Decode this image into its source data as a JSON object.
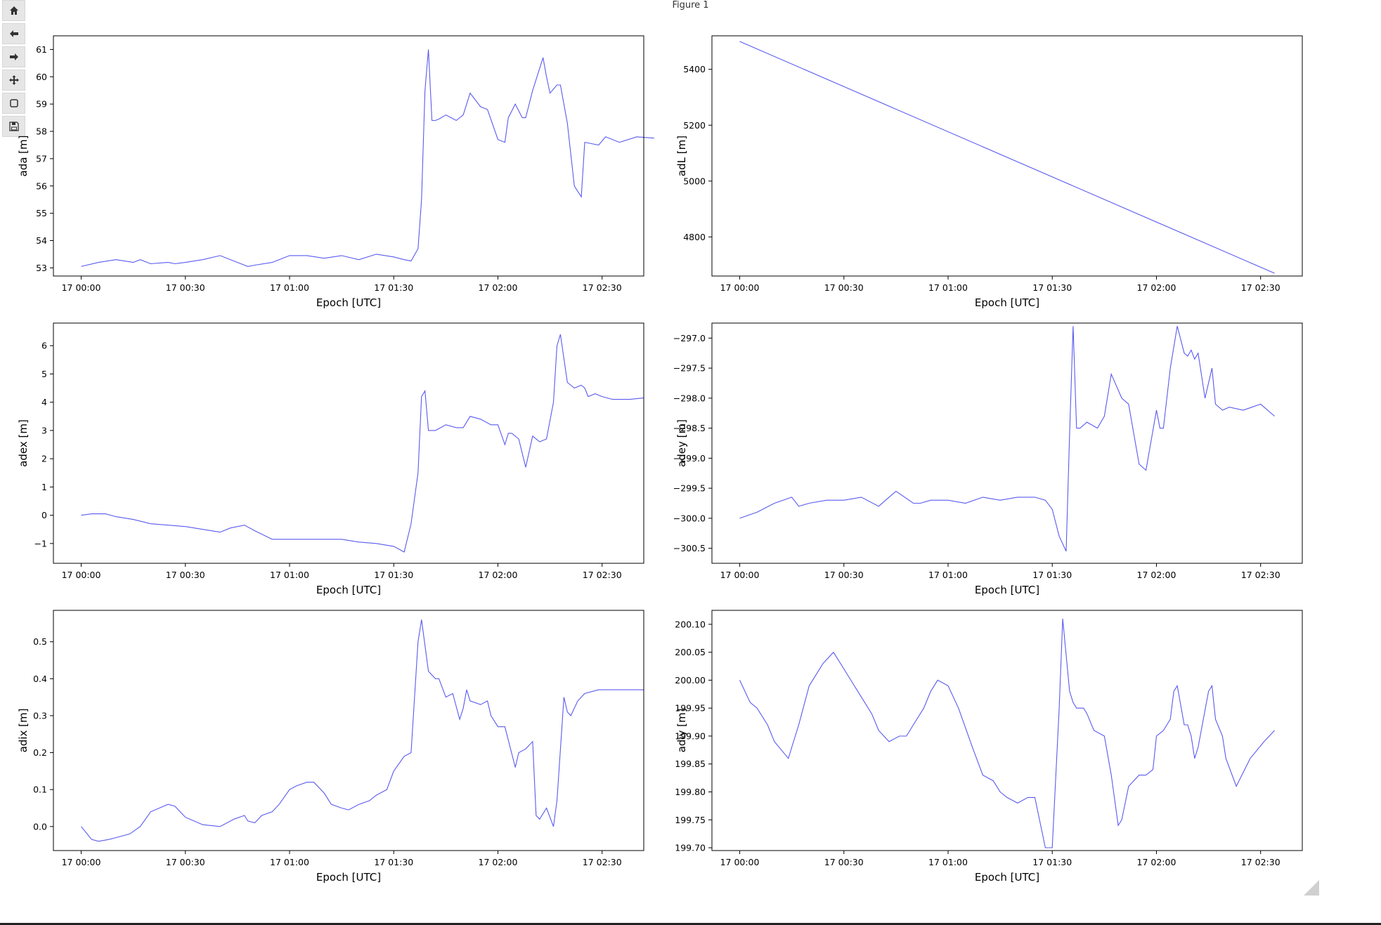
{
  "window": {
    "title": "Figure 1"
  },
  "toolbar": {
    "buttons": [
      {
        "name": "home",
        "icon": "home-icon"
      },
      {
        "name": "back",
        "icon": "arrow-left-icon"
      },
      {
        "name": "forward",
        "icon": "arrow-right-icon"
      },
      {
        "name": "pan",
        "icon": "move-icon"
      },
      {
        "name": "zoom",
        "icon": "zoom-rect-icon"
      },
      {
        "name": "save",
        "icon": "save-icon"
      }
    ]
  },
  "colors": {
    "line": "#5a5af0",
    "axes": "#000000"
  },
  "chart_data": [
    {
      "type": "line",
      "ylabel": "ada [m]",
      "xlabel": "Epoch [UTC]",
      "ylim": [
        52.7,
        61.5
      ],
      "yticks": [
        53,
        54,
        55,
        56,
        57,
        58,
        59,
        60,
        61
      ],
      "ytick_labels": [
        "53",
        "54",
        "55",
        "56",
        "57",
        "58",
        "59",
        "60",
        "61"
      ],
      "xlim": [
        -8,
        162
      ],
      "xticks": [
        0,
        30,
        60,
        90,
        120,
        150
      ],
      "xtick_labels": [
        "17 00:00",
        "17 00:30",
        "17 01:00",
        "17 01:30",
        "17 02:00",
        "17 02:30"
      ],
      "series": [
        {
          "x": [
            0,
            5,
            10,
            15,
            17,
            20,
            25,
            27,
            30,
            35,
            40,
            45,
            48,
            50,
            55,
            60,
            65,
            70,
            75,
            80,
            85,
            90,
            93,
            95,
            97,
            98,
            99,
            100,
            101,
            102,
            103,
            105,
            108,
            110,
            112,
            115,
            117,
            120,
            122,
            123,
            125,
            127,
            128,
            130,
            133,
            134,
            135,
            137,
            138,
            140,
            142,
            144,
            145,
            149,
            151,
            155,
            160,
            165
          ],
          "y": [
            53.05,
            53.2,
            53.3,
            53.2,
            53.3,
            53.15,
            53.2,
            53.15,
            53.2,
            53.3,
            53.45,
            53.2,
            53.05,
            53.1,
            53.2,
            53.45,
            53.45,
            53.35,
            53.45,
            53.3,
            53.5,
            53.4,
            53.3,
            53.25,
            53.7,
            55.5,
            59.5,
            61.0,
            58.4,
            58.4,
            58.45,
            58.6,
            58.4,
            58.6,
            59.4,
            58.9,
            58.8,
            57.7,
            57.6,
            58.5,
            59.0,
            58.5,
            58.5,
            59.5,
            60.7,
            60.0,
            59.4,
            59.7,
            59.7,
            58.3,
            56.0,
            55.6,
            57.6,
            57.5,
            57.8,
            57.6,
            57.8,
            57.75
          ]
        }
      ]
    },
    {
      "type": "line",
      "ylabel": "adL [m]",
      "xlabel": "Epoch [UTC]",
      "ylim": [
        4660,
        5520
      ],
      "yticks": [
        4800,
        5000,
        5200,
        5400
      ],
      "ytick_labels": [
        "4800",
        "5000",
        "5200",
        "5400"
      ],
      "xlim": [
        -8,
        162
      ],
      "xticks": [
        0,
        30,
        60,
        90,
        120,
        150
      ],
      "xtick_labels": [
        "17 00:00",
        "17 00:30",
        "17 01:00",
        "17 01:30",
        "17 02:00",
        "17 02:30"
      ],
      "series": [
        {
          "x": [
            0,
            154
          ],
          "y": [
            5500,
            4670
          ]
        }
      ]
    },
    {
      "type": "line",
      "ylabel": "adex [m]",
      "xlabel": "Epoch [UTC]",
      "ylim": [
        -1.7,
        6.8
      ],
      "yticks": [
        -1,
        0,
        1,
        2,
        3,
        4,
        5,
        6
      ],
      "ytick_labels": [
        "−1",
        "0",
        "1",
        "2",
        "3",
        "4",
        "5",
        "6"
      ],
      "xlim": [
        -8,
        162
      ],
      "xticks": [
        0,
        30,
        60,
        90,
        120,
        150
      ],
      "xtick_labels": [
        "17 00:00",
        "17 00:30",
        "17 01:00",
        "17 01:30",
        "17 02:00",
        "17 02:30"
      ],
      "series": [
        {
          "x": [
            0,
            3,
            7,
            10,
            15,
            20,
            25,
            30,
            35,
            40,
            43,
            47,
            50,
            55,
            60,
            65,
            70,
            75,
            80,
            85,
            90,
            93,
            95,
            97,
            98,
            99,
            100,
            101,
            102,
            105,
            108,
            110,
            112,
            115,
            118,
            120,
            122,
            123,
            124,
            126,
            128,
            130,
            132,
            134,
            136,
            137,
            138,
            140,
            142,
            144,
            145,
            146,
            148,
            150,
            153,
            155,
            158,
            162
          ],
          "y": [
            0.0,
            0.05,
            0.05,
            -0.05,
            -0.15,
            -0.3,
            -0.35,
            -0.4,
            -0.5,
            -0.6,
            -0.45,
            -0.35,
            -0.55,
            -0.85,
            -0.85,
            -0.85,
            -0.85,
            -0.85,
            -0.95,
            -1.0,
            -1.1,
            -1.3,
            -0.3,
            1.5,
            4.2,
            4.4,
            3.0,
            3.0,
            3.0,
            3.2,
            3.1,
            3.1,
            3.5,
            3.4,
            3.2,
            3.2,
            2.5,
            2.9,
            2.9,
            2.7,
            1.7,
            2.8,
            2.6,
            2.7,
            4.0,
            6.0,
            6.4,
            4.7,
            4.5,
            4.6,
            4.5,
            4.2,
            4.3,
            4.2,
            4.1,
            4.1,
            4.1,
            4.15
          ]
        }
      ]
    },
    {
      "type": "line",
      "ylabel": "adey [m]",
      "xlabel": "Epoch [UTC]",
      "ylim": [
        -300.75,
        -296.75
      ],
      "yticks": [
        -300.5,
        -300.0,
        -299.5,
        -299.0,
        -298.5,
        -298.0,
        -297.5,
        -297.0
      ],
      "ytick_labels": [
        "−300.5",
        "−300.0",
        "−299.5",
        "−299.0",
        "−298.5",
        "−298.0",
        "−297.5",
        "−297.0"
      ],
      "xlim": [
        -8,
        162
      ],
      "xticks": [
        0,
        30,
        60,
        90,
        120,
        150
      ],
      "xtick_labels": [
        "17 00:00",
        "17 00:30",
        "17 01:00",
        "17 01:30",
        "17 02:00",
        "17 02:30"
      ],
      "series": [
        {
          "x": [
            0,
            5,
            10,
            15,
            17,
            20,
            25,
            30,
            35,
            40,
            45,
            50,
            52,
            55,
            60,
            65,
            70,
            75,
            80,
            85,
            88,
            90,
            92,
            94,
            95,
            96,
            97,
            98,
            100,
            103,
            105,
            107,
            110,
            112,
            115,
            117,
            120,
            121,
            122,
            124,
            126,
            128,
            129,
            130,
            131,
            132,
            134,
            136,
            137,
            139,
            141,
            145,
            150,
            154
          ],
          "y": [
            -300.0,
            -299.9,
            -299.75,
            -299.65,
            -299.8,
            -299.75,
            -299.7,
            -299.7,
            -299.65,
            -299.8,
            -299.55,
            -299.75,
            -299.75,
            -299.7,
            -299.7,
            -299.75,
            -299.65,
            -299.7,
            -299.65,
            -299.65,
            -299.7,
            -299.85,
            -300.3,
            -300.55,
            -298.6,
            -296.8,
            -298.5,
            -298.5,
            -298.4,
            -298.5,
            -298.3,
            -297.6,
            -298.0,
            -298.1,
            -299.1,
            -299.2,
            -298.2,
            -298.5,
            -298.5,
            -297.5,
            -296.8,
            -297.25,
            -297.3,
            -297.2,
            -297.35,
            -297.25,
            -298.0,
            -297.5,
            -298.1,
            -298.2,
            -298.15,
            -298.2,
            -298.1,
            -298.3
          ]
        }
      ]
    },
    {
      "type": "line",
      "ylabel": "adix [m]",
      "xlabel": "Epoch [UTC]",
      "ylim": [
        -0.065,
        0.585
      ],
      "yticks": [
        0.0,
        0.1,
        0.2,
        0.3,
        0.4,
        0.5
      ],
      "ytick_labels": [
        "0.0",
        "0.1",
        "0.2",
        "0.3",
        "0.4",
        "0.5"
      ],
      "xlim": [
        -8,
        162
      ],
      "xticks": [
        0,
        30,
        60,
        90,
        120,
        150
      ],
      "xtick_labels": [
        "17 00:00",
        "17 00:30",
        "17 01:00",
        "17 01:30",
        "17 02:00",
        "17 02:30"
      ],
      "series": [
        {
          "x": [
            0,
            3,
            5,
            8,
            10,
            14,
            17,
            20,
            25,
            27,
            30,
            35,
            40,
            44,
            47,
            48,
            50,
            52,
            55,
            57,
            60,
            62,
            65,
            67,
            70,
            72,
            75,
            77,
            80,
            83,
            85,
            88,
            90,
            93,
            95,
            97,
            98,
            99,
            100,
            102,
            103,
            105,
            107,
            109,
            110,
            111,
            112,
            115,
            117,
            118,
            120,
            122,
            125,
            126,
            128,
            130,
            131,
            132,
            134,
            136,
            137,
            139,
            140,
            141,
            143,
            145,
            149,
            153,
            155,
            158,
            162
          ],
          "y": [
            0.0,
            -0.035,
            -0.04,
            -0.035,
            -0.03,
            -0.02,
            0.0,
            0.04,
            0.06,
            0.055,
            0.025,
            0.005,
            0.0,
            0.02,
            0.03,
            0.015,
            0.01,
            0.03,
            0.04,
            0.06,
            0.1,
            0.11,
            0.12,
            0.12,
            0.09,
            0.06,
            0.05,
            0.045,
            0.06,
            0.07,
            0.085,
            0.1,
            0.15,
            0.19,
            0.2,
            0.5,
            0.56,
            0.49,
            0.42,
            0.4,
            0.4,
            0.35,
            0.36,
            0.29,
            0.32,
            0.37,
            0.34,
            0.33,
            0.34,
            0.3,
            0.27,
            0.27,
            0.16,
            0.2,
            0.21,
            0.23,
            0.03,
            0.02,
            0.05,
            0.0,
            0.07,
            0.35,
            0.31,
            0.3,
            0.34,
            0.36,
            0.37,
            0.37,
            0.37,
            0.37,
            0.37
          ]
        }
      ]
    },
    {
      "type": "line",
      "ylabel": "adiy [m]",
      "xlabel": "Epoch [UTC]",
      "ylim": [
        199.695,
        200.125
      ],
      "yticks": [
        199.7,
        199.75,
        199.8,
        199.85,
        199.9,
        199.95,
        200.0,
        200.05,
        200.1
      ],
      "ytick_labels": [
        "199.70",
        "199.75",
        "199.80",
        "199.85",
        "199.90",
        "199.95",
        "200.00",
        "200.05",
        "200.10"
      ],
      "xlim": [
        -8,
        162
      ],
      "xticks": [
        0,
        30,
        60,
        90,
        120,
        150
      ],
      "xtick_labels": [
        "17 00:00",
        "17 00:30",
        "17 01:00",
        "17 01:30",
        "17 02:00",
        "17 02:30"
      ],
      "series": [
        {
          "x": [
            0,
            3,
            5,
            8,
            10,
            14,
            17,
            20,
            24,
            27,
            28,
            30,
            35,
            38,
            40,
            43,
            46,
            48,
            50,
            53,
            55,
            57,
            60,
            63,
            67,
            70,
            73,
            75,
            77,
            80,
            83,
            85,
            88,
            90,
            92,
            93,
            95,
            96,
            97,
            98,
            99,
            100,
            102,
            105,
            107,
            109,
            110,
            112,
            115,
            117,
            119,
            120,
            122,
            123,
            124,
            125,
            126,
            128,
            129,
            130,
            131,
            132,
            135,
            136,
            137,
            139,
            140,
            143,
            147,
            151,
            154
          ],
          "y": [
            200.0,
            199.96,
            199.95,
            199.92,
            199.89,
            199.86,
            199.92,
            199.99,
            200.03,
            200.05,
            200.04,
            200.02,
            199.97,
            199.94,
            199.91,
            199.89,
            199.9,
            199.9,
            199.92,
            199.95,
            199.98,
            200.0,
            199.99,
            199.95,
            199.88,
            199.83,
            199.82,
            199.8,
            199.79,
            199.78,
            199.79,
            199.79,
            199.7,
            199.7,
            199.95,
            200.11,
            199.98,
            199.96,
            199.95,
            199.95,
            199.95,
            199.94,
            199.91,
            199.9,
            199.83,
            199.74,
            199.75,
            199.81,
            199.83,
            199.83,
            199.84,
            199.9,
            199.91,
            199.92,
            199.93,
            199.98,
            199.99,
            199.92,
            199.92,
            199.9,
            199.86,
            199.88,
            199.98,
            199.99,
            199.93,
            199.9,
            199.86,
            199.81,
            199.86,
            199.89,
            199.91
          ]
        }
      ]
    }
  ]
}
